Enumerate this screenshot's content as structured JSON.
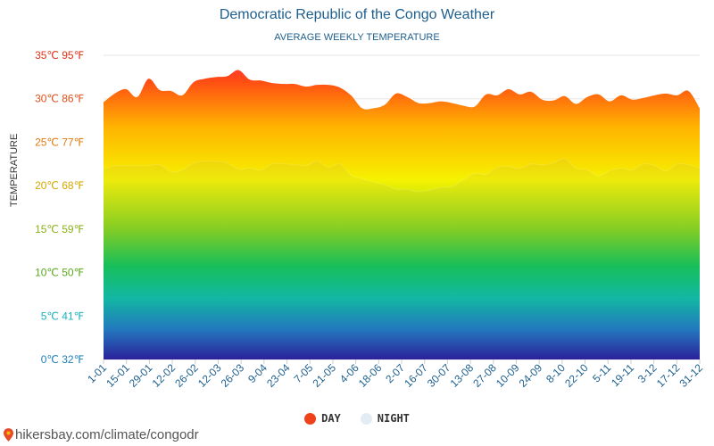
{
  "chart_data": {
    "type": "area",
    "title": "Democratic Republic of the Congo Weather",
    "subtitle": "AVERAGE WEEKLY TEMPERATURE",
    "ylabel": "TEMPERATURE",
    "ylim": [
      0,
      35
    ],
    "y_ticks": [
      {
        "v": 0,
        "label": "0℃ 32℉",
        "color": "#1e7fb8"
      },
      {
        "v": 5,
        "label": "5℃ 41℉",
        "color": "#1ab0b8"
      },
      {
        "v": 10,
        "label": "10℃ 50℉",
        "color": "#5aa81e"
      },
      {
        "v": 15,
        "label": "15℃ 59℉",
        "color": "#8cb01a"
      },
      {
        "v": 20,
        "label": "20℃ 68℉",
        "color": "#d6a800"
      },
      {
        "v": 25,
        "label": "25℃ 77℉",
        "color": "#e07a0f"
      },
      {
        "v": 30,
        "label": "30℃ 86℉",
        "color": "#e0501a"
      },
      {
        "v": 35,
        "label": "35℃ 95℉",
        "color": "#e0321a"
      }
    ],
    "x_tick_labels": [
      "1-01",
      "15-01",
      "29-01",
      "12-02",
      "26-02",
      "12-03",
      "26-03",
      "9-04",
      "23-04",
      "7-05",
      "21-05",
      "4-06",
      "18-06",
      "2-07",
      "16-07",
      "30-07",
      "13-08",
      "27-08",
      "10-09",
      "24-09",
      "8-10",
      "22-10",
      "5-11",
      "19-11",
      "3-12",
      "17-12",
      "31-12"
    ],
    "x_tick_color": "#1d5f8e",
    "series": [
      {
        "name": "DAY",
        "values": [
          29.6,
          30.6,
          31.1,
          30.2,
          32.3,
          31.0,
          30.9,
          30.4,
          31.9,
          32.3,
          32.5,
          32.6,
          33.3,
          32.2,
          32.1,
          31.8,
          31.7,
          31.7,
          31.4,
          31.6,
          31.6,
          31.3,
          30.4,
          28.9,
          28.9,
          29.3,
          30.6,
          30.2,
          29.5,
          29.5,
          29.7,
          29.5,
          29.2,
          29.1,
          30.5,
          30.4,
          31.1,
          30.5,
          30.8,
          29.9,
          29.8,
          30.3,
          29.4,
          30.2,
          30.5,
          29.7,
          30.4,
          29.9,
          30.1,
          30.4,
          30.6,
          30.4,
          30.9,
          28.9
        ]
      },
      {
        "name": "NIGHT",
        "values": [
          21.9,
          22.3,
          22.3,
          22.3,
          22.3,
          22.4,
          21.6,
          21.8,
          22.6,
          22.8,
          22.8,
          22.6,
          21.9,
          22.0,
          21.8,
          22.5,
          22.5,
          22.4,
          22.3,
          22.8,
          22.1,
          22.5,
          21.2,
          20.8,
          20.4,
          20.1,
          19.6,
          19.6,
          19.3,
          19.5,
          19.8,
          19.9,
          20.7,
          21.4,
          21.3,
          22.1,
          22.2,
          22.0,
          22.5,
          22.4,
          22.6,
          23.1,
          22.0,
          21.8,
          21.1,
          21.7,
          22.0,
          21.8,
          22.5,
          22.3,
          21.7,
          22.5,
          22.4,
          22.0
        ]
      }
    ],
    "legend": [
      {
        "name": "DAY",
        "color": "#f0421a"
      },
      {
        "name": "NIGHT",
        "color": "#e4ecf3"
      }
    ],
    "source": "hikersbay.com/climate/congodr"
  }
}
